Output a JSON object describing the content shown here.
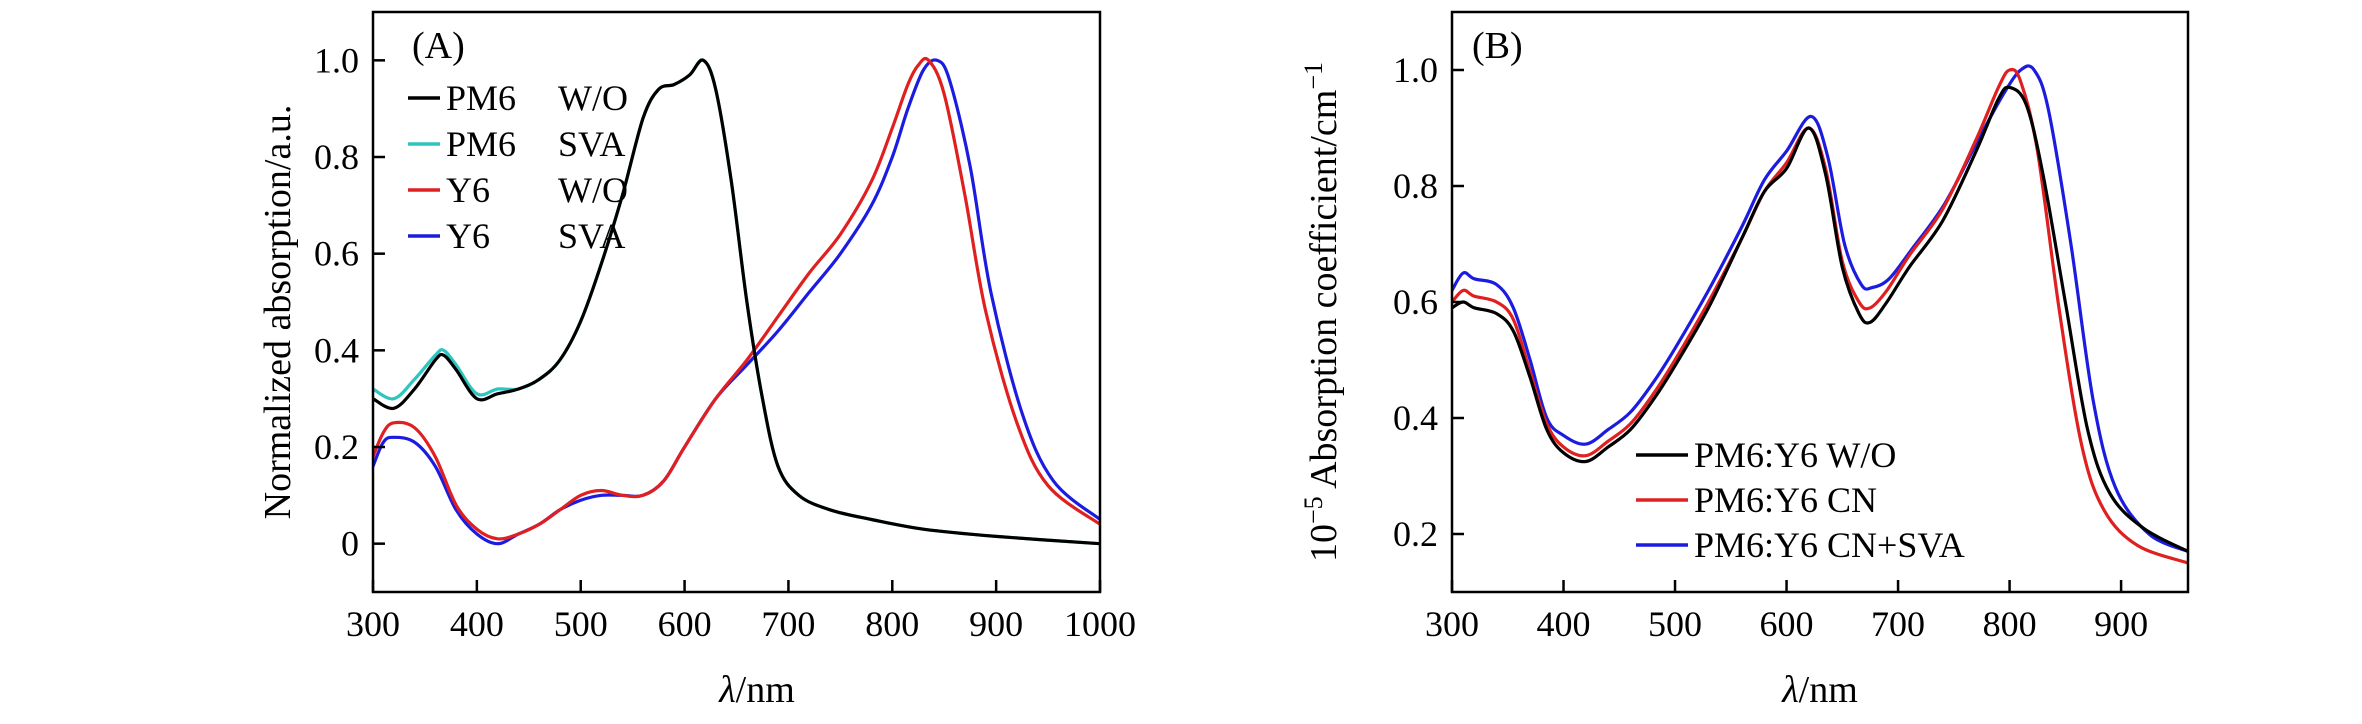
{
  "chart_data": [
    {
      "type": "line",
      "panel": "(A)",
      "xlabel_italic": "λ",
      "xlabel_unit": "/nm",
      "ylabel": "Normalized absorption/a.u.",
      "xlim": [
        300,
        1000
      ],
      "ylim": [
        -0.1,
        1.1
      ],
      "xticks": [
        300,
        400,
        500,
        600,
        700,
        800,
        900,
        1000
      ],
      "xtick_labels": [
        "300",
        "400",
        "500",
        "600",
        "700",
        "800",
        "900",
        "1000"
      ],
      "yticks": [
        0,
        0.2,
        0.4,
        0.6,
        0.8,
        1.0
      ],
      "ytick_labels": [
        "0",
        "0.2",
        "0.4",
        "0.6",
        "0.8",
        "1.0"
      ],
      "grid": false,
      "legend_position": "top-left",
      "legend": [
        {
          "name": "PM6",
          "cond": "W/O"
        },
        {
          "name": "PM6",
          "cond": "SVA"
        },
        {
          "name": "Y6",
          "cond": "W/O"
        },
        {
          "name": "Y6",
          "cond": "SVA"
        }
      ],
      "series": [
        {
          "name": "PM6 W/O",
          "color": "#000000",
          "x": [
            300,
            320,
            340,
            360,
            368,
            380,
            400,
            420,
            440,
            460,
            480,
            500,
            520,
            540,
            560,
            575,
            590,
            605,
            618,
            630,
            645,
            660,
            675,
            690,
            710,
            740,
            780,
            830,
            900,
            1000
          ],
          "y": [
            0.3,
            0.28,
            0.32,
            0.38,
            0.39,
            0.36,
            0.3,
            0.31,
            0.32,
            0.34,
            0.38,
            0.46,
            0.58,
            0.72,
            0.88,
            0.94,
            0.95,
            0.97,
            1.0,
            0.94,
            0.75,
            0.5,
            0.3,
            0.16,
            0.1,
            0.07,
            0.05,
            0.03,
            0.015,
            0.0
          ]
        },
        {
          "name": "PM6 SVA",
          "color": "#2ec4c0",
          "x": [
            300,
            320,
            340,
            360,
            368,
            380,
            400,
            420,
            440,
            460,
            480,
            500,
            520,
            540,
            560,
            575,
            590,
            605,
            618,
            630,
            645,
            660,
            675,
            690,
            710,
            740,
            780,
            830,
            900,
            1000
          ],
          "y": [
            0.32,
            0.3,
            0.34,
            0.39,
            0.4,
            0.37,
            0.31,
            0.32,
            0.32,
            0.34,
            0.38,
            0.46,
            0.58,
            0.72,
            0.88,
            0.94,
            0.95,
            0.97,
            1.0,
            0.94,
            0.75,
            0.5,
            0.3,
            0.16,
            0.1,
            0.07,
            0.05,
            0.03,
            0.015,
            0.0
          ]
        },
        {
          "name": "Y6 W/O",
          "color": "#e02020",
          "x": [
            300,
            310,
            320,
            340,
            360,
            380,
            400,
            420,
            440,
            460,
            480,
            500,
            520,
            540,
            560,
            580,
            600,
            630,
            660,
            690,
            720,
            750,
            780,
            800,
            815,
            825,
            835,
            850,
            870,
            890,
            920,
            950,
            1000
          ],
          "y": [
            0.18,
            0.23,
            0.25,
            0.24,
            0.18,
            0.08,
            0.03,
            0.01,
            0.02,
            0.04,
            0.07,
            0.1,
            0.11,
            0.1,
            0.1,
            0.13,
            0.2,
            0.3,
            0.38,
            0.47,
            0.56,
            0.64,
            0.75,
            0.86,
            0.95,
            0.99,
            1.0,
            0.93,
            0.72,
            0.48,
            0.25,
            0.12,
            0.04
          ]
        },
        {
          "name": "Y6 SVA",
          "color": "#1c1ce0",
          "x": [
            300,
            310,
            320,
            340,
            360,
            380,
            400,
            420,
            440,
            460,
            480,
            500,
            520,
            540,
            560,
            580,
            600,
            630,
            660,
            690,
            720,
            750,
            780,
            800,
            815,
            830,
            843,
            855,
            875,
            895,
            925,
            955,
            1000
          ],
          "y": [
            0.16,
            0.21,
            0.22,
            0.21,
            0.16,
            0.07,
            0.02,
            0.0,
            0.02,
            0.04,
            0.07,
            0.09,
            0.1,
            0.1,
            0.1,
            0.13,
            0.2,
            0.3,
            0.37,
            0.44,
            0.52,
            0.6,
            0.7,
            0.8,
            0.9,
            0.98,
            1.0,
            0.96,
            0.78,
            0.52,
            0.27,
            0.13,
            0.05
          ]
        }
      ]
    },
    {
      "type": "line",
      "panel": "(B)",
      "xlabel_italic": "λ",
      "xlabel_unit": "/nm",
      "ylabel_sup": "−5",
      "ylabel_pre": "10",
      "ylabel_main": " Absorption coefficient/cm",
      "ylabel_unit_sup": "−1",
      "xlim": [
        300,
        960
      ],
      "ylim": [
        0.1,
        1.1
      ],
      "xticks": [
        300,
        400,
        500,
        600,
        700,
        800,
        900
      ],
      "xtick_labels": [
        "300",
        "400",
        "500",
        "600",
        "700",
        "800",
        "900"
      ],
      "yticks": [
        0.2,
        0.4,
        0.6,
        0.8,
        1.0
      ],
      "ytick_labels": [
        "0.2",
        "0.4",
        "0.6",
        "0.8",
        "1.0"
      ],
      "grid": false,
      "legend_position": "bottom-center",
      "legend": [
        "PM6:Y6 W/O",
        "PM6:Y6 CN",
        "PM6:Y6 CN+SVA"
      ],
      "series": [
        {
          "name": "PM6:Y6 W/O",
          "color": "#000000",
          "x": [
            300,
            310,
            320,
            340,
            355,
            370,
            385,
            400,
            420,
            440,
            460,
            480,
            500,
            530,
            560,
            580,
            600,
            620,
            635,
            650,
            665,
            675,
            690,
            710,
            740,
            770,
            790,
            800,
            815,
            830,
            850,
            870,
            890,
            920,
            960
          ],
          "y": [
            0.59,
            0.6,
            0.59,
            0.58,
            0.55,
            0.47,
            0.38,
            0.34,
            0.325,
            0.35,
            0.38,
            0.43,
            0.49,
            0.59,
            0.71,
            0.79,
            0.83,
            0.9,
            0.82,
            0.66,
            0.58,
            0.565,
            0.6,
            0.66,
            0.74,
            0.86,
            0.95,
            0.97,
            0.94,
            0.82,
            0.6,
            0.38,
            0.27,
            0.21,
            0.17
          ]
        },
        {
          "name": "PM6:Y6 CN",
          "color": "#e02020",
          "x": [
            300,
            310,
            320,
            340,
            355,
            370,
            385,
            400,
            420,
            440,
            460,
            480,
            500,
            530,
            560,
            580,
            600,
            620,
            635,
            650,
            665,
            675,
            690,
            710,
            740,
            770,
            790,
            800,
            810,
            825,
            845,
            865,
            885,
            915,
            960
          ],
          "y": [
            0.6,
            0.62,
            0.61,
            0.6,
            0.57,
            0.48,
            0.39,
            0.35,
            0.335,
            0.36,
            0.39,
            0.44,
            0.5,
            0.6,
            0.71,
            0.79,
            0.84,
            0.9,
            0.83,
            0.67,
            0.6,
            0.59,
            0.62,
            0.68,
            0.76,
            0.88,
            0.97,
            1.0,
            0.98,
            0.86,
            0.58,
            0.35,
            0.24,
            0.18,
            0.15
          ]
        },
        {
          "name": "PM6:Y6 CN+SVA",
          "color": "#1c1ce0",
          "x": [
            300,
            310,
            320,
            340,
            355,
            370,
            385,
            400,
            420,
            440,
            460,
            480,
            500,
            530,
            560,
            580,
            600,
            622,
            637,
            652,
            667,
            677,
            692,
            712,
            742,
            772,
            795,
            810,
            822,
            835,
            855,
            875,
            895,
            925,
            960
          ],
          "y": [
            0.62,
            0.65,
            0.64,
            0.63,
            0.59,
            0.5,
            0.4,
            0.37,
            0.355,
            0.38,
            0.41,
            0.46,
            0.52,
            0.62,
            0.73,
            0.81,
            0.86,
            0.92,
            0.85,
            0.7,
            0.63,
            0.625,
            0.64,
            0.69,
            0.77,
            0.88,
            0.96,
            1.0,
            1.0,
            0.93,
            0.7,
            0.43,
            0.28,
            0.2,
            0.17
          ]
        }
      ]
    }
  ]
}
